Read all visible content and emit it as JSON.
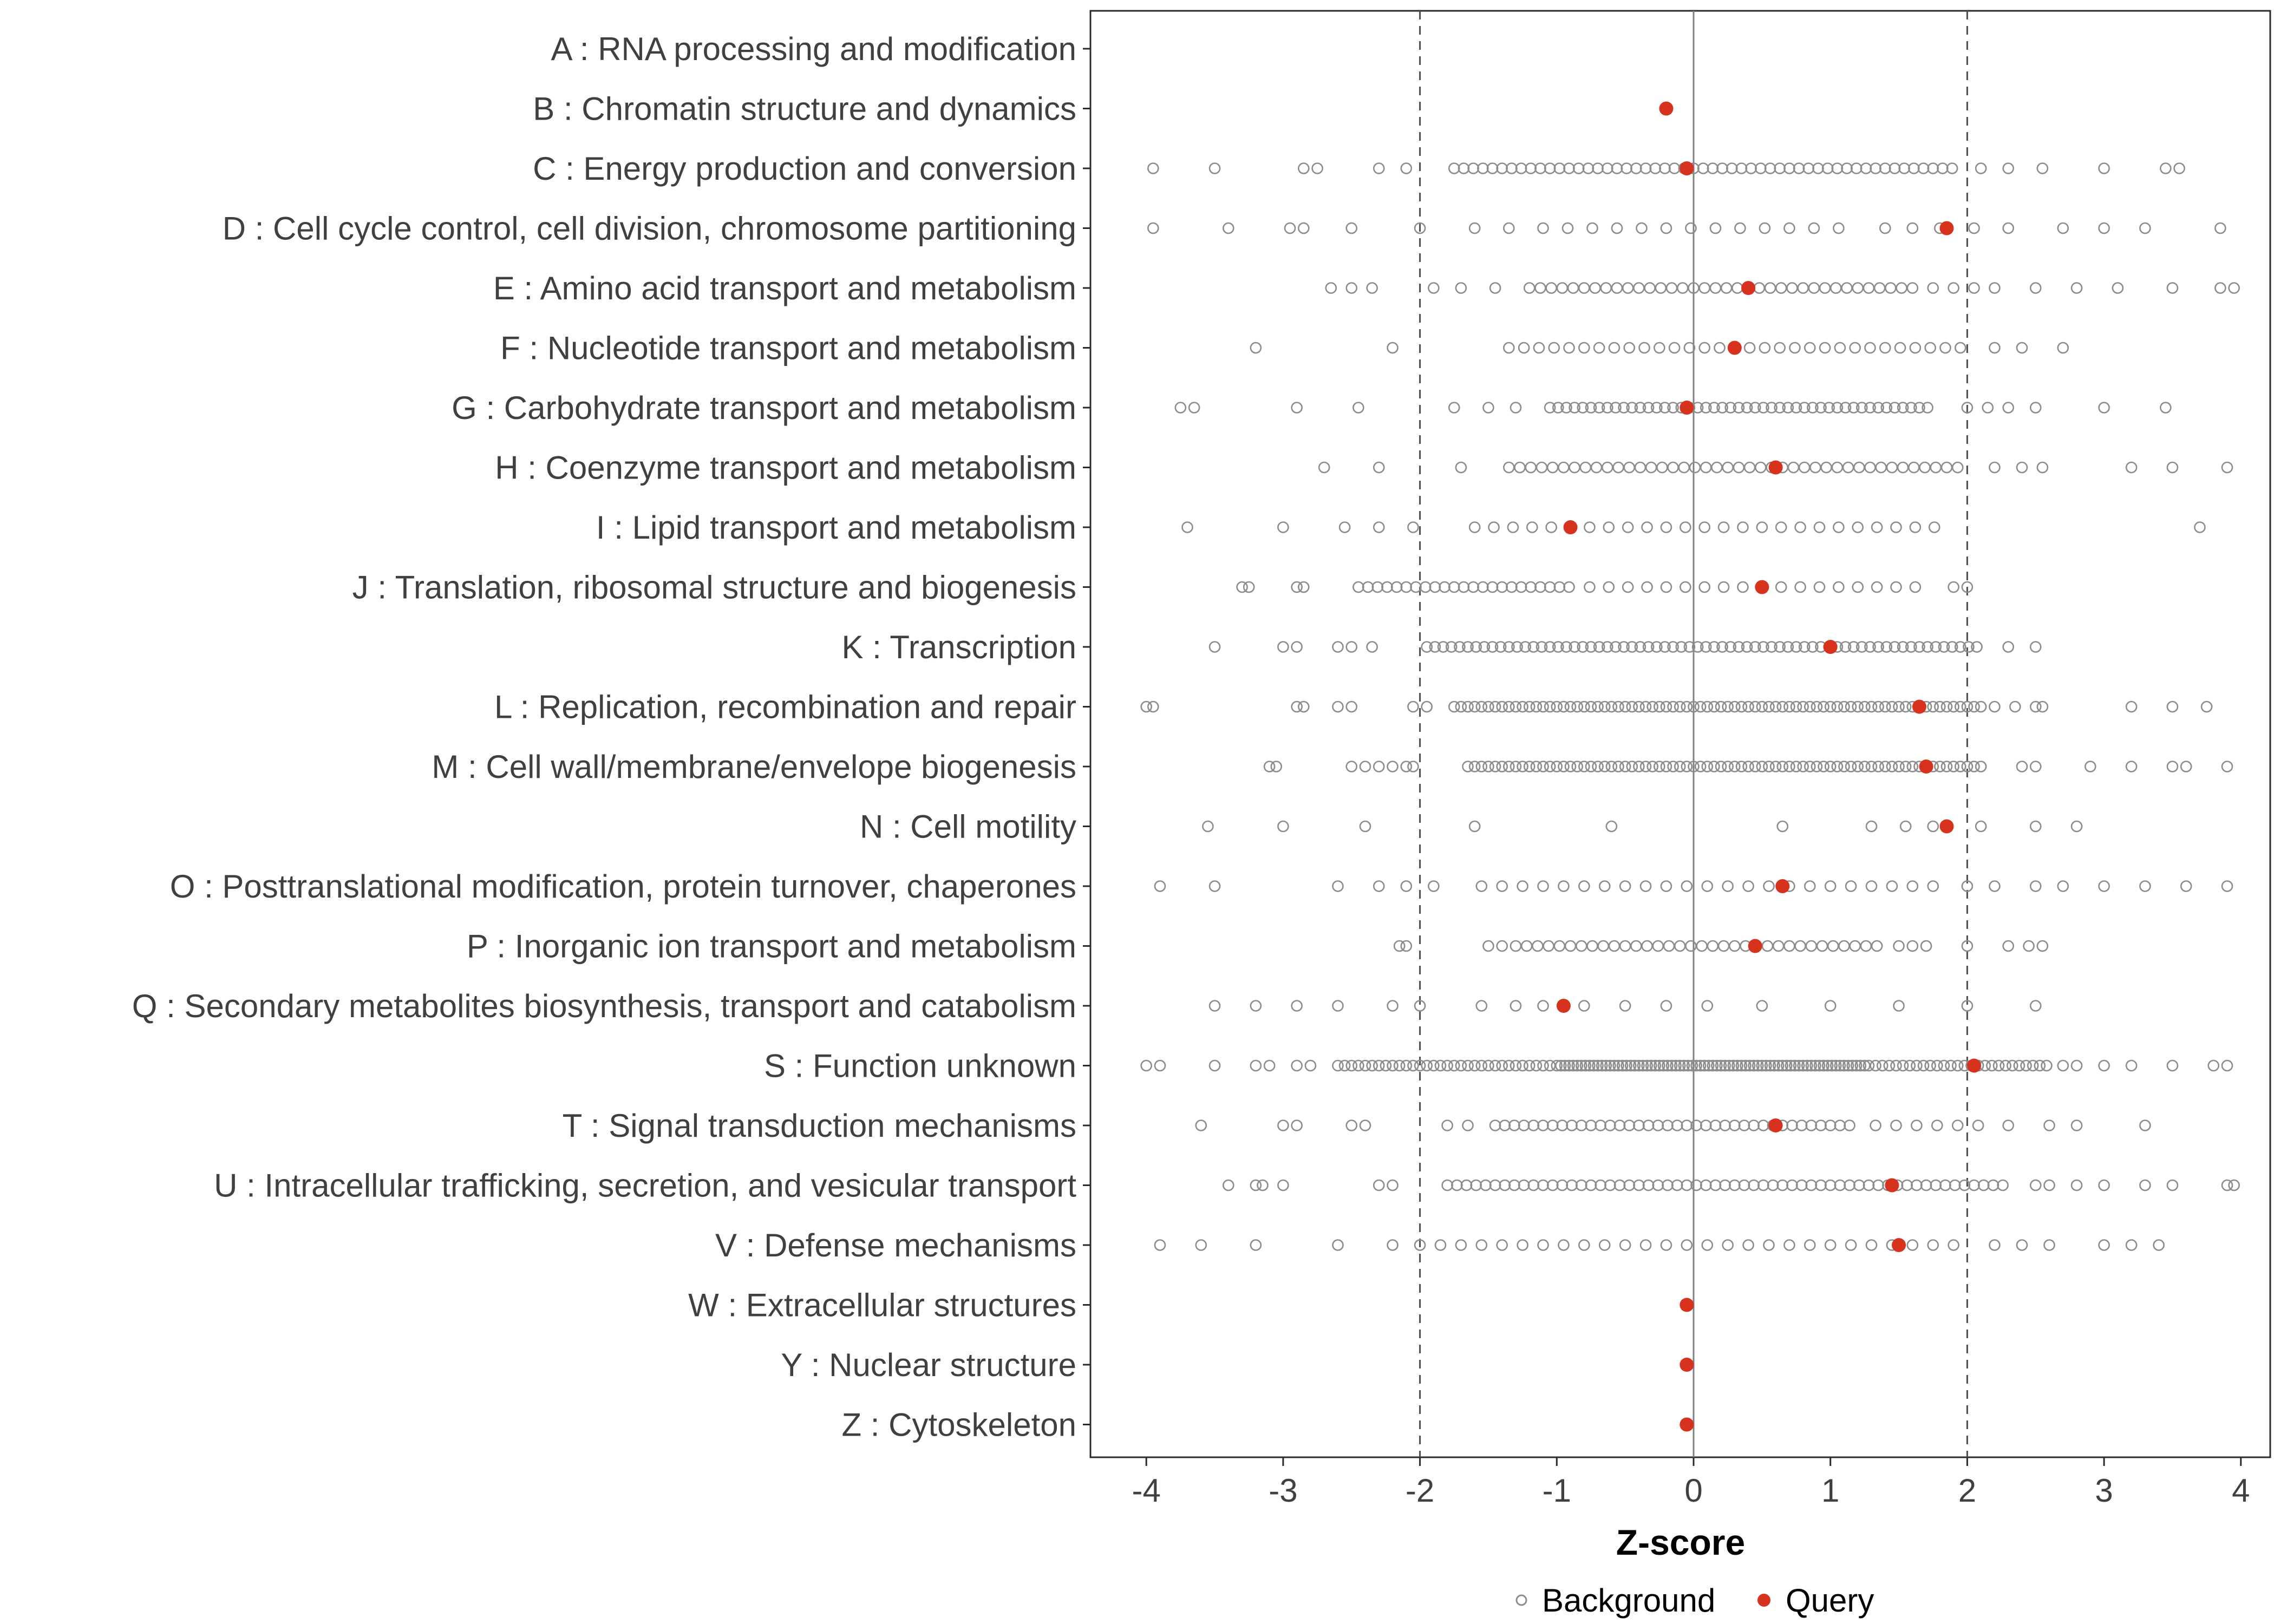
{
  "chart_data": {
    "type": "scatter",
    "title": "",
    "xlabel": "Z-score",
    "ylabel": "",
    "xlim": [
      -4.35,
      4.2
    ],
    "x_ticks": [
      -4,
      -3,
      -2,
      -1,
      0,
      1,
      2,
      3,
      4
    ],
    "grid": false,
    "legend_position": "bottom",
    "reference_lines": {
      "solid": [
        0
      ],
      "dashed": [
        -2,
        2
      ]
    },
    "legend": {
      "background": "Background",
      "query": "Query"
    },
    "colors": {
      "query": "#D7321E",
      "background": "#8C8C8C",
      "panel_border": "#2B2B2B",
      "dashed_line": "#4D4D4D",
      "zero_line": "#808080",
      "text": "#404040"
    },
    "categories": [
      {
        "label": "A : RNA processing and modification",
        "query": null,
        "background_bands": [],
        "background_points": []
      },
      {
        "label": "B : Chromatin structure and dynamics",
        "query": -0.2,
        "background_bands": [],
        "background_points": []
      },
      {
        "label": "C : Energy production and conversion",
        "query": -0.05,
        "background_bands": [
          [
            -1.75,
            1.95,
            0.07
          ]
        ],
        "background_points": [
          -3.95,
          -3.5,
          -2.85,
          -2.75,
          -2.3,
          -2.1,
          2.1,
          2.3,
          2.55,
          3.0,
          3.45,
          3.55
        ]
      },
      {
        "label": "D : Cell cycle control, cell division, chromosome partitioning",
        "query": 1.85,
        "background_bands": [
          [
            -1.1,
            1.2,
            0.18
          ]
        ],
        "background_points": [
          -3.95,
          -3.4,
          -2.95,
          -2.85,
          -2.5,
          -2.0,
          -1.6,
          -1.35,
          1.4,
          1.6,
          1.8,
          2.05,
          2.3,
          2.7,
          3.0,
          3.3,
          3.85
        ]
      },
      {
        "label": "E : Amino acid transport and metabolism",
        "query": 0.4,
        "background_bands": [
          [
            -1.2,
            1.6,
            0.08
          ]
        ],
        "background_points": [
          -2.65,
          -2.5,
          -2.35,
          -1.9,
          -1.7,
          -1.45,
          1.75,
          1.9,
          2.05,
          2.2,
          2.5,
          2.8,
          3.1,
          3.5,
          3.85,
          3.95
        ]
      },
      {
        "label": "F : Nucleotide transport and metabolism",
        "query": 0.3,
        "background_bands": [
          [
            -1.35,
            2.0,
            0.11
          ]
        ],
        "background_points": [
          -3.2,
          -2.2,
          2.2,
          2.4,
          2.7
        ]
      },
      {
        "label": "G : Carbohydrate transport and metabolism",
        "query": -0.05,
        "background_bands": [
          [
            -1.05,
            1.75,
            0.06
          ]
        ],
        "background_points": [
          -3.75,
          -3.65,
          -2.9,
          -2.45,
          -1.75,
          -1.5,
          -1.3,
          2.0,
          2.15,
          2.3,
          2.5,
          3.0,
          3.45
        ]
      },
      {
        "label": "H : Coenzyme transport and metabolism",
        "query": 0.6,
        "background_bands": [
          [
            -1.35,
            2.0,
            0.08
          ]
        ],
        "background_points": [
          -2.7,
          -2.3,
          -1.7,
          2.2,
          2.4,
          2.55,
          3.2,
          3.5,
          3.9
        ]
      },
      {
        "label": "I : Lipid transport and metabolism",
        "query": -0.9,
        "background_bands": [
          [
            -1.6,
            1.8,
            0.14
          ]
        ],
        "background_points": [
          -3.7,
          -3.0,
          -2.55,
          -2.3,
          -2.05,
          3.7
        ]
      },
      {
        "label": "J : Translation, ribosomal structure and biogenesis",
        "query": 0.5,
        "background_bands": [
          [
            -2.45,
            -0.9,
            0.07
          ],
          [
            -0.76,
            1.7,
            0.14
          ]
        ],
        "background_points": [
          -3.3,
          -3.25,
          -2.9,
          -2.85,
          1.9,
          2.0
        ]
      },
      {
        "label": "K : Transcription",
        "query": 1.0,
        "background_bands": [
          [
            -1.95,
            2.1,
            0.06
          ]
        ],
        "background_points": [
          -3.5,
          -3.0,
          -2.9,
          -2.6,
          -2.5,
          -2.35,
          2.3,
          2.5
        ]
      },
      {
        "label": "L : Replication, recombination and repair",
        "query": 1.65,
        "background_bands": [
          [
            -1.75,
            2.1,
            0.05
          ]
        ],
        "background_points": [
          -4.0,
          -3.95,
          -2.9,
          -2.85,
          -2.6,
          -2.5,
          -2.05,
          -1.95,
          2.2,
          2.35,
          2.5,
          2.55,
          3.2,
          3.5,
          3.75
        ]
      },
      {
        "label": "M : Cell wall/membrane/envelope biogenesis",
        "query": 1.7,
        "background_bands": [
          [
            -1.65,
            2.1,
            0.05
          ]
        ],
        "background_points": [
          -3.1,
          -3.05,
          -2.5,
          -2.4,
          -2.3,
          -2.2,
          -2.1,
          -2.05,
          2.4,
          2.5,
          2.9,
          3.2,
          3.5,
          3.6,
          3.9
        ]
      },
      {
        "label": "N : Cell motility",
        "query": 1.85,
        "background_bands": [],
        "background_points": [
          -3.55,
          -3.0,
          -2.4,
          -1.6,
          -0.6,
          0.65,
          1.3,
          1.55,
          1.75,
          2.1,
          2.5,
          2.8
        ]
      },
      {
        "label": "O : Posttranslational modification, protein turnover, chaperones",
        "query": 0.65,
        "background_bands": [
          [
            -1.55,
            1.85,
            0.15
          ]
        ],
        "background_points": [
          -3.9,
          -3.5,
          -2.6,
          -2.3,
          -2.1,
          -1.9,
          2.0,
          2.2,
          2.5,
          2.7,
          3.0,
          3.3,
          3.6,
          3.9
        ]
      },
      {
        "label": "P : Inorganic ion transport and metabolism",
        "query": 0.45,
        "background_bands": [
          [
            -1.3,
            1.35,
            0.08
          ]
        ],
        "background_points": [
          -2.15,
          -2.1,
          -1.5,
          -1.4,
          1.5,
          1.6,
          1.7,
          2.0,
          2.3,
          2.45,
          2.55
        ]
      },
      {
        "label": "Q : Secondary metabolites biosynthesis, transport and catabolism",
        "query": -0.95,
        "background_bands": [],
        "background_points": [
          -3.5,
          -3.2,
          -2.9,
          -2.6,
          -2.2,
          -2.0,
          -1.55,
          -1.3,
          -1.1,
          -0.8,
          -0.5,
          -0.2,
          0.1,
          0.5,
          1.0,
          1.5,
          2.0,
          2.5
        ]
      },
      {
        "label": "S : Function unknown",
        "query": 2.05,
        "background_bands": [
          [
            -2.6,
            -1.03,
            0.05
          ],
          [
            -1.0,
            1.3,
            0.03
          ],
          [
            1.33,
            2.6,
            0.05
          ]
        ],
        "background_points": [
          -4.0,
          -3.9,
          -3.5,
          -3.2,
          -3.1,
          -2.9,
          -2.8,
          2.7,
          2.8,
          3.0,
          3.2,
          3.5,
          3.8,
          3.9
        ]
      },
      {
        "label": "T : Signal transduction mechanisms",
        "query": 0.6,
        "background_bands": [
          [
            -1.45,
            1.2,
            0.07
          ],
          [
            1.33,
            2.1,
            0.15
          ]
        ],
        "background_points": [
          -3.6,
          -3.0,
          -2.9,
          -2.5,
          -2.4,
          -1.8,
          -1.65,
          2.3,
          2.6,
          2.8,
          3.3
        ]
      },
      {
        "label": "U : Intracellular trafficking, secretion, and vesicular transport",
        "query": 1.45,
        "background_bands": [
          [
            -1.8,
            2.3,
            0.07
          ]
        ],
        "background_points": [
          -3.4,
          -3.2,
          -3.15,
          -3.0,
          -2.3,
          -2.2,
          2.5,
          2.6,
          2.8,
          3.0,
          3.3,
          3.5,
          3.9,
          3.95
        ]
      },
      {
        "label": "V : Defense mechanisms",
        "query": 1.5,
        "background_bands": [
          [
            -2.0,
            2.0,
            0.15
          ]
        ],
        "background_points": [
          -3.9,
          -3.6,
          -3.2,
          -2.6,
          -2.2,
          2.2,
          2.4,
          2.6,
          3.0,
          3.2,
          3.4
        ]
      },
      {
        "label": "W : Extracellular structures",
        "query": -0.05,
        "background_bands": [],
        "background_points": []
      },
      {
        "label": "Y : Nuclear structure",
        "query": -0.05,
        "background_bands": [],
        "background_points": []
      },
      {
        "label": "Z : Cytoskeleton",
        "query": -0.05,
        "background_bands": [],
        "background_points": []
      }
    ]
  }
}
